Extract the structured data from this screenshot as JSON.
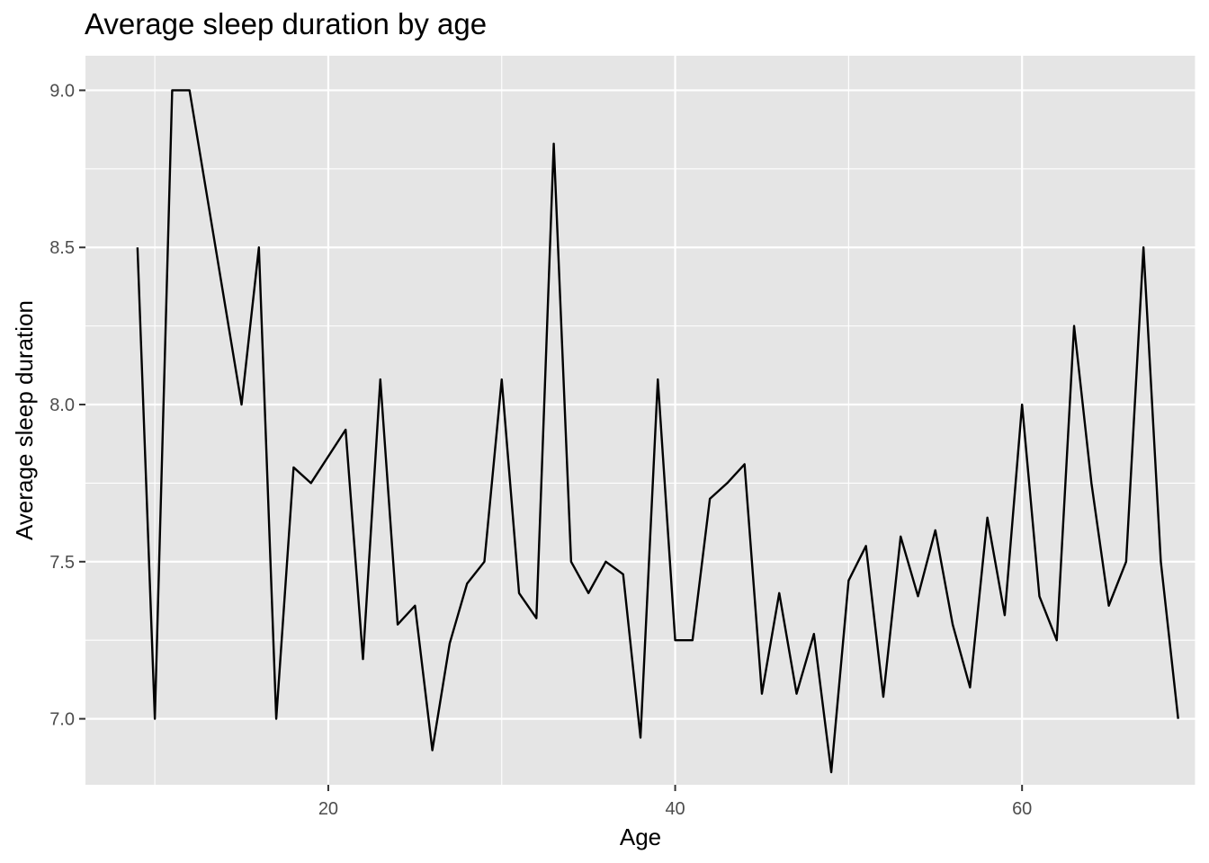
{
  "chart_data": {
    "type": "line",
    "title": "Average sleep duration by age",
    "xlabel": "Age",
    "ylabel": "Average sleep duration",
    "xlim": [
      6,
      70
    ],
    "ylim": [
      6.79,
      9.11
    ],
    "x_ticks": [
      20,
      40,
      60
    ],
    "y_ticks": [
      7.0,
      7.5,
      8.0,
      8.5,
      9.0
    ],
    "x_tick_labels": [
      "20",
      "40",
      "60"
    ],
    "y_tick_labels": [
      "7.0",
      "7.5",
      "8.0",
      "8.5",
      "9.0"
    ],
    "grid": true,
    "background": "#e5e5e5",
    "line_color": "#000000",
    "series": [
      {
        "x": [
          9,
          10,
          11,
          12,
          15,
          16,
          17,
          18,
          19,
          21,
          22,
          23,
          24,
          25,
          26,
          27,
          28,
          29,
          30,
          31,
          32,
          33,
          34,
          35,
          36,
          37,
          38,
          39,
          40,
          41,
          42,
          43,
          44,
          45,
          46,
          47,
          48,
          49,
          50,
          51,
          52,
          53,
          54,
          55,
          56,
          57,
          58,
          59,
          60,
          61,
          62,
          63,
          64,
          65,
          66,
          67,
          68,
          69
        ],
        "values": [
          8.5,
          7.0,
          9.0,
          9.0,
          8.0,
          8.5,
          7.0,
          7.8,
          7.75,
          7.92,
          7.19,
          8.08,
          7.3,
          7.36,
          6.9,
          7.24,
          7.43,
          7.5,
          8.08,
          7.4,
          7.32,
          8.83,
          7.5,
          7.4,
          7.5,
          7.46,
          6.94,
          8.08,
          7.25,
          7.25,
          7.7,
          7.75,
          7.81,
          7.08,
          7.4,
          7.08,
          7.27,
          6.83,
          7.44,
          7.55,
          7.07,
          7.58,
          7.39,
          7.6,
          7.3,
          7.1,
          7.64,
          7.33,
          8.0,
          7.39,
          7.25,
          8.25,
          7.75,
          7.36,
          7.5,
          8.5,
          7.5,
          7.0
        ]
      }
    ]
  }
}
